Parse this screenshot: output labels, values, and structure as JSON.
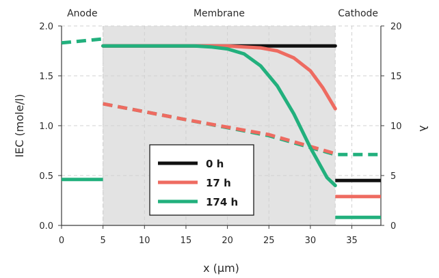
{
  "chart_data": {
    "type": "line",
    "xlabel": "x (μm)",
    "ylabel_left": "IEC (mole/l)",
    "ylabel_right": "λ",
    "xlim": [
      0,
      38.5
    ],
    "ylim_left": [
      0,
      2.0
    ],
    "ylim_right": [
      0,
      20
    ],
    "xticks": [
      "0",
      "5",
      "10",
      "15",
      "20",
      "25",
      "30",
      "35"
    ],
    "yticks_left": [
      "0.0",
      "0.5",
      "1.0",
      "1.5",
      "2.0"
    ],
    "yticks_right": [
      "0",
      "5",
      "10",
      "15",
      "20"
    ],
    "regions": [
      {
        "label": "Anode",
        "x_start": 0,
        "x_end": 5,
        "shaded": false
      },
      {
        "label": "Membrane",
        "x_start": 5,
        "x_end": 33,
        "shaded": true
      },
      {
        "label": "Cathode",
        "x_start": 33,
        "x_end": 38.5,
        "shaded": false
      }
    ],
    "grid": "dashed vertical and horizontal",
    "legend_position": "center-bottom",
    "series": [
      {
        "name": "0 h",
        "color": "#111111",
        "iec": [
          [
            5,
            1.8
          ],
          [
            33,
            1.8
          ]
        ],
        "lambda": [
          [
            33,
            4.5
          ],
          [
            38.5,
            4.5
          ]
        ]
      },
      {
        "name": "17 h",
        "color": "#ee6b61",
        "iec": [
          [
            5,
            1.8
          ],
          [
            20,
            1.8
          ],
          [
            22,
            1.79
          ],
          [
            24,
            1.78
          ],
          [
            26,
            1.75
          ],
          [
            28,
            1.68
          ],
          [
            30,
            1.55
          ],
          [
            31.5,
            1.38
          ],
          [
            33,
            1.17
          ]
        ],
        "lambda": [
          [
            33,
            2.9
          ],
          [
            38.5,
            2.9
          ]
        ]
      },
      {
        "name": "174 h",
        "color": "#22b07d",
        "iec": [
          [
            5,
            1.8
          ],
          [
            16,
            1.8
          ],
          [
            18,
            1.79
          ],
          [
            20,
            1.77
          ],
          [
            22,
            1.72
          ],
          [
            24,
            1.6
          ],
          [
            26,
            1.4
          ],
          [
            28,
            1.12
          ],
          [
            30,
            0.78
          ],
          [
            32,
            0.48
          ],
          [
            33,
            0.4
          ]
        ],
        "lambda": [
          [
            33,
            0.8
          ],
          [
            38.5,
            0.8
          ]
        ]
      }
    ],
    "water_content_curves": [
      {
        "color": "#22b07d",
        "style": "dashed",
        "points": [
          [
            0,
            18.3
          ],
          [
            5,
            18.7
          ]
        ]
      },
      {
        "color": "#22b07d",
        "style": "dashed",
        "points": [
          [
            5,
            12.2
          ],
          [
            15,
            10.6
          ],
          [
            25,
            9.0
          ],
          [
            33,
            7.1
          ],
          [
            38.5,
            7.1
          ]
        ]
      },
      {
        "color": "#ee6b61",
        "style": "dashed",
        "points": [
          [
            5,
            12.2
          ],
          [
            15,
            10.6
          ],
          [
            25,
            9.1
          ],
          [
            33,
            7.2
          ]
        ]
      }
    ],
    "anode_segment": {
      "color": "#22b07d",
      "lambda": [
        [
          0,
          4.6
        ],
        [
          5,
          4.6
        ]
      ]
    }
  }
}
